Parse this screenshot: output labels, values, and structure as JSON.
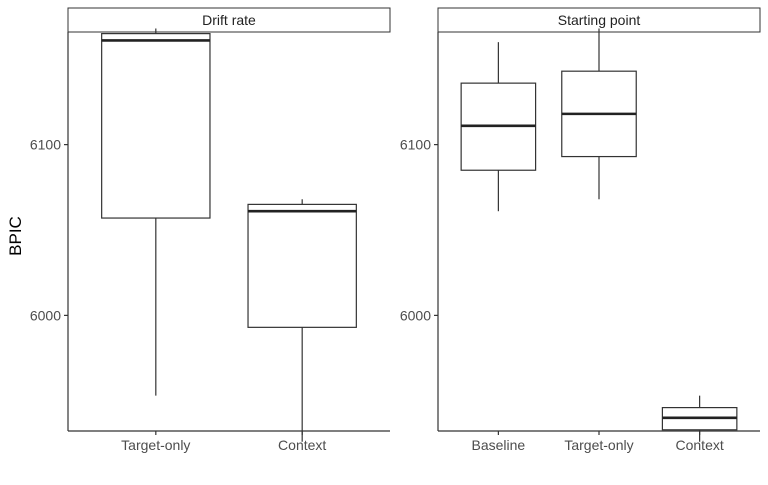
{
  "chart_data": [
    {
      "type": "boxplot",
      "panel_title": "Drift rate",
      "ylabel": "BPIC",
      "ylim": [
        5920,
        6180
      ],
      "yticks": [
        6000,
        6100
      ],
      "yticks_labels": [
        "6000",
        "6100"
      ],
      "grid": false,
      "categories": [
        "Target-only",
        "Context"
      ],
      "boxes": [
        {
          "category": "Target-only",
          "min": 5953,
          "q1": 6057,
          "median": 6161,
          "q3": 6165,
          "max": 6168
        },
        {
          "category": "Context",
          "min": 5926,
          "q1": 5993,
          "median": 6061,
          "q3": 6065,
          "max": 6068
        }
      ]
    },
    {
      "type": "boxplot",
      "panel_title": "Starting point",
      "ylim": [
        5920,
        6180
      ],
      "yticks": [
        6000,
        6100
      ],
      "yticks_labels": [
        "6000",
        "6100"
      ],
      "grid": false,
      "categories": [
        "Baseline",
        "Target-only",
        "Context"
      ],
      "boxes": [
        {
          "category": "Baseline",
          "min": 6061,
          "q1": 6085,
          "median": 6111,
          "q3": 6136,
          "max": 6160
        },
        {
          "category": "Target-only",
          "min": 6068,
          "q1": 6093,
          "median": 6118,
          "q3": 6143,
          "max": 6168
        },
        {
          "category": "Context",
          "min": 5926,
          "q1": 5933,
          "median": 5940,
          "q3": 5946,
          "max": 5953
        }
      ]
    }
  ]
}
